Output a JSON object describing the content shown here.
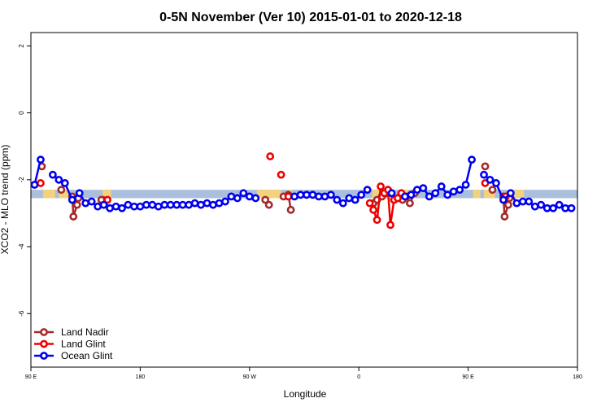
{
  "chart_data": {
    "type": "line",
    "title": "0-5N November (Ver 10)   2015-01-01 to 2020-12-18",
    "xlabel": "Longitude",
    "ylabel": "XCO2 - MLO trend (ppm)",
    "x_ticks": [
      {
        "value": 90,
        "label": "90 E"
      },
      {
        "value": 180,
        "label": "180"
      },
      {
        "value": 270,
        "label": "90 W"
      },
      {
        "value": 360,
        "label": "0"
      },
      {
        "value": 450,
        "label": "90 E"
      },
      {
        "value": 540,
        "label": "180"
      }
    ],
    "y_ticks": [
      -6,
      -4,
      -2,
      0,
      2
    ],
    "xlim": [
      90,
      540
    ],
    "ylim": [
      -7.6,
      2.4
    ],
    "grid": false,
    "legend_position": "bottom-left",
    "band": {
      "y_range": [
        -2.55,
        -2.3
      ],
      "color": "#a9bfdc"
    },
    "band_highlights": [
      {
        "x_range": [
          100,
          110
        ],
        "color": "#f2d27c"
      },
      {
        "x_range": [
          113,
          122
        ],
        "color": "#f2d27c"
      },
      {
        "x_range": [
          149,
          156
        ],
        "color": "#f2d27c"
      },
      {
        "x_range": [
          276,
          296
        ],
        "color": "#f2d27c"
      },
      {
        "x_range": [
          302,
          305
        ],
        "color": "#f2d27c"
      },
      {
        "x_range": [
          371,
          388
        ],
        "color": "#f2d27c"
      },
      {
        "x_range": [
          395,
          401
        ],
        "color": "#f2d27c"
      },
      {
        "x_range": [
          454,
          460
        ],
        "color": "#f2d27c"
      },
      {
        "x_range": [
          463,
          472
        ],
        "color": "#f2d27c"
      },
      {
        "x_range": [
          488,
          496
        ],
        "color": "#f2d27c"
      }
    ],
    "series": [
      {
        "name": "Land Nadir",
        "color": "#a52a2a",
        "segments": [
          [
            [
              99,
              -1.6
            ]
          ],
          [
            [
              115,
              -2.3
            ]
          ],
          [
            [
              124,
              -2.5
            ],
            [
              125,
              -3.1
            ],
            [
              128,
              -2.75
            ],
            [
              129,
              -2.55
            ]
          ],
          [
            [
              149,
              -2.6
            ]
          ],
          [
            [
              148,
              -2.6
            ]
          ],
          [
            [
              283,
              -2.6
            ],
            [
              286,
              -2.75
            ]
          ],
          [
            [
              298,
              -2.5
            ],
            [
              302,
              -2.45
            ],
            [
              304,
              -2.9
            ]
          ],
          [
            [
              372,
              -2.7
            ],
            [
              375,
              -2.6
            ],
            [
              379,
              -2.5
            ],
            [
              383,
              -2.4
            ]
          ],
          [
            [
              396,
              -2.6
            ],
            [
              399,
              -2.5
            ],
            [
              402,
              -2.7
            ],
            [
              406,
              -2.4
            ]
          ],
          [
            [
              464,
              -1.6
            ]
          ],
          [
            [
              470,
              -2.3
            ]
          ],
          [
            [
              479,
              -2.5
            ],
            [
              480,
              -3.1
            ],
            [
              483,
              -2.75
            ],
            [
              484,
              -2.55
            ]
          ]
        ]
      },
      {
        "name": "Land Glint",
        "color": "#ee0000",
        "segments": [
          [
            [
              98,
              -2.1
            ]
          ],
          [
            [
              153,
              -2.6
            ]
          ],
          [
            [
              287,
              -1.3
            ]
          ],
          [
            [
              296,
              -1.85
            ]
          ],
          [
            [
              302,
              -2.5
            ]
          ],
          [
            [
              369,
              -2.7
            ],
            [
              372,
              -2.9
            ],
            [
              375,
              -3.2
            ],
            [
              378,
              -2.2
            ],
            [
              381,
              -2.4
            ],
            [
              384,
              -2.3
            ],
            [
              386,
              -3.35
            ],
            [
              389,
              -2.6
            ],
            [
              392,
              -2.55
            ],
            [
              395,
              -2.4
            ]
          ],
          [
            [
              464,
              -2.1
            ]
          ],
          [
            [
              481,
              -2.5
            ]
          ]
        ]
      },
      {
        "name": "Ocean Glint",
        "color": "#0000ee",
        "segments": [
          [
            [
              93,
              -2.15
            ],
            [
              98,
              -1.4
            ]
          ],
          [
            [
              108,
              -1.85
            ],
            [
              113,
              -2.0
            ],
            [
              118,
              -2.1
            ],
            [
              124,
              -2.6
            ],
            [
              130,
              -2.4
            ],
            [
              135,
              -2.7
            ],
            [
              140,
              -2.65
            ],
            [
              145,
              -2.8
            ],
            [
              150,
              -2.75
            ],
            [
              155,
              -2.85
            ],
            [
              160,
              -2.8
            ],
            [
              165,
              -2.85
            ],
            [
              170,
              -2.75
            ],
            [
              175,
              -2.8
            ],
            [
              180,
              -2.8
            ],
            [
              185,
              -2.75
            ],
            [
              190,
              -2.75
            ],
            [
              195,
              -2.8
            ],
            [
              200,
              -2.75
            ],
            [
              205,
              -2.75
            ],
            [
              210,
              -2.75
            ],
            [
              215,
              -2.75
            ],
            [
              220,
              -2.75
            ],
            [
              225,
              -2.7
            ],
            [
              230,
              -2.75
            ],
            [
              235,
              -2.7
            ],
            [
              240,
              -2.75
            ],
            [
              245,
              -2.7
            ],
            [
              250,
              -2.65
            ],
            [
              255,
              -2.5
            ],
            [
              260,
              -2.55
            ],
            [
              265,
              -2.4
            ],
            [
              270,
              -2.5
            ],
            [
              275,
              -2.55
            ]
          ],
          [
            [
              307,
              -2.5
            ],
            [
              312,
              -2.45
            ],
            [
              317,
              -2.45
            ],
            [
              322,
              -2.45
            ],
            [
              327,
              -2.5
            ],
            [
              332,
              -2.5
            ],
            [
              337,
              -2.45
            ],
            [
              342,
              -2.6
            ],
            [
              347,
              -2.7
            ],
            [
              352,
              -2.55
            ],
            [
              357,
              -2.6
            ],
            [
              362,
              -2.45
            ],
            [
              367,
              -2.3
            ]
          ],
          [
            [
              387,
              -2.4
            ]
          ],
          [
            [
              398,
              -2.5
            ],
            [
              403,
              -2.45
            ],
            [
              408,
              -2.3
            ],
            [
              413,
              -2.25
            ],
            [
              418,
              -2.5
            ],
            [
              423,
              -2.4
            ],
            [
              428,
              -2.2
            ],
            [
              433,
              -2.45
            ],
            [
              438,
              -2.35
            ],
            [
              443,
              -2.3
            ],
            [
              448,
              -2.15
            ],
            [
              453,
              -1.4
            ]
          ],
          [
            [
              463,
              -1.85
            ],
            [
              468,
              -2.0
            ],
            [
              473,
              -2.1
            ],
            [
              479,
              -2.6
            ],
            [
              485,
              -2.4
            ],
            [
              490,
              -2.7
            ],
            [
              495,
              -2.65
            ],
            [
              500,
              -2.65
            ],
            [
              505,
              -2.8
            ],
            [
              510,
              -2.75
            ],
            [
              515,
              -2.85
            ],
            [
              520,
              -2.85
            ],
            [
              525,
              -2.75
            ],
            [
              530,
              -2.85
            ],
            [
              535,
              -2.85
            ]
          ]
        ]
      }
    ]
  }
}
